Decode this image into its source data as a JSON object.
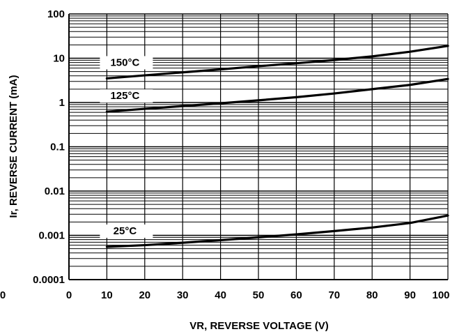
{
  "chart_data": {
    "type": "line",
    "title": "",
    "xlabel": "VR, REVERSE VOLTAGE (V)",
    "ylabel": "Ir, REVERSE CURRENT (mA)",
    "xlim": [
      0,
      100
    ],
    "ylim": [
      0.0001,
      100
    ],
    "y_scale": "log",
    "grid": true,
    "x_ticks": [
      "0",
      "10",
      "20",
      "30",
      "40",
      "50",
      "60",
      "70",
      "80",
      "90",
      "100"
    ],
    "x_extra_tick_left": "0",
    "y_ticks": [
      "0.0001",
      "0.001",
      "0.01",
      "0.1",
      "1",
      "10",
      "100"
    ],
    "series": [
      {
        "name": "150°C",
        "x": [
          10,
          20,
          30,
          40,
          50,
          60,
          70,
          80,
          90,
          100
        ],
        "y": [
          3.5,
          4.1,
          4.8,
          5.6,
          6.6,
          7.7,
          9.1,
          11,
          14,
          19
        ]
      },
      {
        "name": "125°C",
        "x": [
          10,
          20,
          30,
          40,
          50,
          60,
          70,
          80,
          90,
          100
        ],
        "y": [
          0.62,
          0.72,
          0.83,
          0.96,
          1.12,
          1.32,
          1.6,
          2.0,
          2.5,
          3.4
        ]
      },
      {
        "name": "25°C",
        "x": [
          10,
          20,
          30,
          40,
          50,
          60,
          70,
          80,
          90,
          100
        ],
        "y": [
          0.00055,
          0.0006,
          0.00068,
          0.00078,
          0.0009,
          0.00105,
          0.00125,
          0.0015,
          0.0019,
          0.0028
        ]
      }
    ]
  }
}
